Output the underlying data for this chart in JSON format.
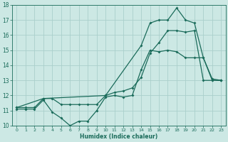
{
  "xlabel": "Humidex (Indice chaleur)",
  "bg_color": "#cce8e4",
  "grid_color": "#aacfcb",
  "line_color": "#1a6b5a",
  "xlim": [
    -0.5,
    23.5
  ],
  "ylim": [
    10,
    18
  ],
  "xticks": [
    0,
    1,
    2,
    3,
    4,
    5,
    6,
    7,
    8,
    9,
    10,
    11,
    12,
    13,
    14,
    15,
    16,
    17,
    18,
    19,
    20,
    21,
    22,
    23
  ],
  "yticks": [
    10,
    11,
    12,
    13,
    14,
    15,
    16,
    17,
    18
  ],
  "line1_x": [
    0,
    1,
    2,
    3,
    4,
    5,
    6,
    7,
    8,
    9,
    10,
    11,
    12,
    13,
    14,
    15,
    16,
    17,
    18,
    19,
    20,
    21,
    22,
    23
  ],
  "line1_y": [
    11.1,
    11.1,
    11.1,
    11.7,
    10.9,
    10.5,
    10.0,
    10.3,
    10.3,
    11.0,
    11.9,
    12.0,
    11.9,
    12.0,
    13.7,
    15.0,
    14.9,
    15.0,
    14.9,
    14.5,
    14.5,
    14.5,
    13.0,
    13.0
  ],
  "line2_x": [
    0,
    1,
    2,
    3,
    4,
    5,
    6,
    7,
    8,
    9,
    10,
    11,
    12,
    13,
    14,
    15,
    16,
    17,
    18,
    19,
    20,
    21,
    22,
    23
  ],
  "line2_y": [
    11.2,
    11.2,
    11.2,
    11.8,
    11.8,
    11.4,
    11.4,
    11.4,
    11.4,
    11.4,
    12.0,
    12.2,
    12.3,
    12.5,
    13.2,
    14.8,
    15.5,
    16.3,
    16.3,
    16.2,
    16.3,
    13.0,
    13.0,
    13.0
  ],
  "line3_x": [
    0,
    3,
    10,
    14,
    15,
    16,
    17,
    18,
    19,
    20,
    21,
    22,
    23
  ],
  "line3_y": [
    11.2,
    11.8,
    12.0,
    15.3,
    16.8,
    17.0,
    17.0,
    17.8,
    17.0,
    16.8,
    14.5,
    13.1,
    13.0
  ]
}
